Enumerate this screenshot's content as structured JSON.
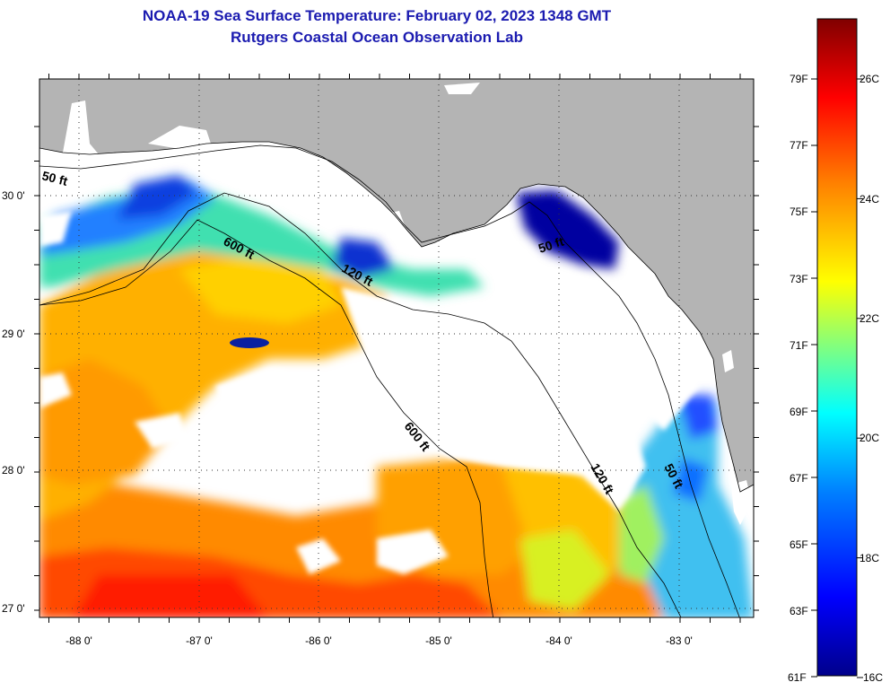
{
  "header": {
    "title_line1": "NOAA-19 Sea Surface Temperature:  February 02, 2023 1348 GMT",
    "title_line2": "Rutgers Coastal Ocean Observation Lab"
  },
  "map": {
    "lon_labels": [
      "-88 0'",
      "-87 0'",
      "-86 0'",
      "-85 0'",
      "-84 0'",
      "-83 0'"
    ],
    "lat_labels": [
      "30 0'",
      "29 0'",
      "28 0'",
      "27 0'"
    ],
    "contour_labels": [
      "50 ft",
      "600 ft",
      "120 ft",
      "50 ft",
      "600 ft",
      "120 ft",
      "50 ft"
    ],
    "land_color": "#b4b4b4",
    "cloud_color": "#ffffff"
  },
  "colorbar": {
    "fahrenheit_labels": [
      "79F",
      "77F",
      "75F",
      "73F",
      "71F",
      "69F",
      "67F",
      "65F",
      "63F",
      "61F"
    ],
    "celsius_labels": [
      "26C",
      "24C",
      "22C",
      "20C",
      "18C",
      "16C"
    ],
    "range_c": [
      16,
      27
    ],
    "colors": [
      "#00008b",
      "#0000ff",
      "#0080ff",
      "#00ffff",
      "#80ff80",
      "#ffff00",
      "#ff8000",
      "#ff0000",
      "#800000"
    ]
  }
}
